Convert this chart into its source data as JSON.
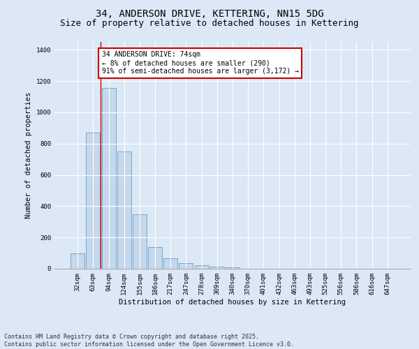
{
  "title_line1": "34, ANDERSON DRIVE, KETTERING, NN15 5DG",
  "title_line2": "Size of property relative to detached houses in Kettering",
  "xlabel": "Distribution of detached houses by size in Kettering",
  "ylabel": "Number of detached properties",
  "categories": [
    "32sqm",
    "63sqm",
    "94sqm",
    "124sqm",
    "155sqm",
    "186sqm",
    "217sqm",
    "247sqm",
    "278sqm",
    "309sqm",
    "340sqm",
    "370sqm",
    "401sqm",
    "432sqm",
    "463sqm",
    "493sqm",
    "525sqm",
    "556sqm",
    "586sqm",
    "616sqm",
    "647sqm"
  ],
  "values": [
    100,
    870,
    1155,
    750,
    350,
    140,
    65,
    35,
    22,
    15,
    10,
    0,
    0,
    0,
    0,
    0,
    0,
    0,
    0,
    0,
    0
  ],
  "bar_color": "#c5d8ec",
  "bar_edge_color": "#6a9ec5",
  "vline_x": 1.5,
  "vline_color": "#cc0000",
  "annotation_text": "34 ANDERSON DRIVE: 74sqm\n← 8% of detached houses are smaller (290)\n91% of semi-detached houses are larger (3,172) →",
  "annotation_box_color": "#ffffff",
  "annotation_box_edge_color": "#cc0000",
  "ylim": [
    0,
    1450
  ],
  "yticks": [
    0,
    200,
    400,
    600,
    800,
    1000,
    1200,
    1400
  ],
  "bg_color": "#dce8f5",
  "plot_bg_color": "#dce8f5",
  "grid_color": "#ffffff",
  "footer_line1": "Contains HM Land Registry data © Crown copyright and database right 2025.",
  "footer_line2": "Contains public sector information licensed under the Open Government Licence v3.0.",
  "title_fontsize": 10,
  "subtitle_fontsize": 9,
  "axis_label_fontsize": 7.5,
  "tick_fontsize": 6.5,
  "annotation_fontsize": 7,
  "footer_fontsize": 6
}
